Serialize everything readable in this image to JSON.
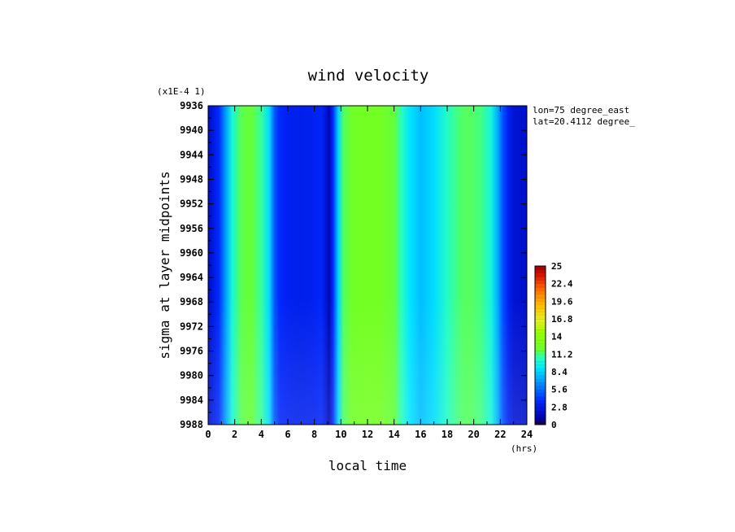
{
  "chart_data": {
    "type": "heatmap",
    "title": "wind velocity",
    "xlabel": "local time",
    "ylabel": "sigma at layer midpoints",
    "x_unit": "(hrs)",
    "y_scale_note": "(x1E-4 1)",
    "annotations": [
      "lon=75 degree_east",
      "lat=20.4112 degree_"
    ],
    "x_ticks": [
      "0",
      "2",
      "4",
      "6",
      "8",
      "10",
      "12",
      "14",
      "16",
      "18",
      "20",
      "22",
      "24"
    ],
    "y_ticks": [
      "9936",
      "9940",
      "9944",
      "9948",
      "9952",
      "9956",
      "9960",
      "9964",
      "9968",
      "9972",
      "9976",
      "9980",
      "9984",
      "9988"
    ],
    "xlim": [
      0,
      24
    ],
    "ylim": [
      9936,
      9988
    ],
    "colorbar": {
      "min": 0,
      "max": 25,
      "labels": [
        "25",
        "22.4",
        "19.6",
        "16.8",
        "14",
        "11.2",
        "8.4",
        "5.6",
        "2.8",
        "0"
      ]
    },
    "profile_x": [
      0,
      0.3,
      0.8,
      1.3,
      1.8,
      2.5,
      3.2,
      4.0,
      4.6,
      5.0,
      5.4,
      6.0,
      7.0,
      8.0,
      8.5,
      8.9,
      9.1,
      9.4,
      9.8,
      10.2,
      10.8,
      12.0,
      13.0,
      14.0,
      14.6,
      15.2,
      16.0,
      17.0,
      18.0,
      19.0,
      19.6,
      20.5,
      21.3,
      21.8,
      22.2,
      22.6,
      23.0,
      23.5,
      24.0
    ],
    "profile_values": [
      2.0,
      2.6,
      3.8,
      6.8,
      9.8,
      11.6,
      11.9,
      10.8,
      8.6,
      5.0,
      3.6,
      3.3,
      3.1,
      3.3,
      3.6,
      2.4,
      1.2,
      3.8,
      8.4,
      11.4,
      12.1,
      12.4,
      12.3,
      11.8,
      10.4,
      8.8,
      7.8,
      8.6,
      10.3,
      11.3,
      11.5,
      11.1,
      9.8,
      7.4,
      4.8,
      3.2,
      2.4,
      2.2,
      2.0
    ]
  }
}
